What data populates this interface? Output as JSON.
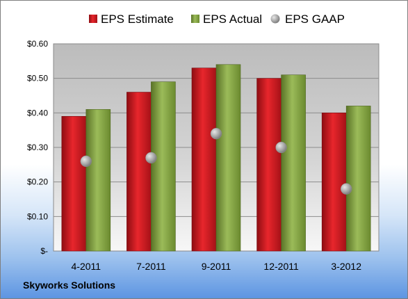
{
  "company": "Skyworks Solutions",
  "chart_data": {
    "type": "bar",
    "categories": [
      "4-2011",
      "7-2011",
      "9-2011",
      "12-2011",
      "3-2012"
    ],
    "series": [
      {
        "name": "EPS Estimate",
        "kind": "bar",
        "color": "#c0141b",
        "values": [
          0.39,
          0.46,
          0.53,
          0.5,
          0.4
        ]
      },
      {
        "name": "EPS Actual",
        "kind": "bar",
        "color": "#7f9c3a",
        "values": [
          0.41,
          0.49,
          0.54,
          0.51,
          0.42
        ]
      },
      {
        "name": "EPS GAAP",
        "kind": "scatter",
        "color": "#a0a0a0",
        "values": [
          0.26,
          0.27,
          0.34,
          0.3,
          0.18
        ]
      }
    ],
    "yticks": [
      "$-",
      "$0.10",
      "$0.20",
      "$0.30",
      "$0.40",
      "$0.50",
      "$0.60"
    ],
    "ylim": [
      0,
      0.6
    ],
    "grid": true,
    "legend_position": "top"
  }
}
